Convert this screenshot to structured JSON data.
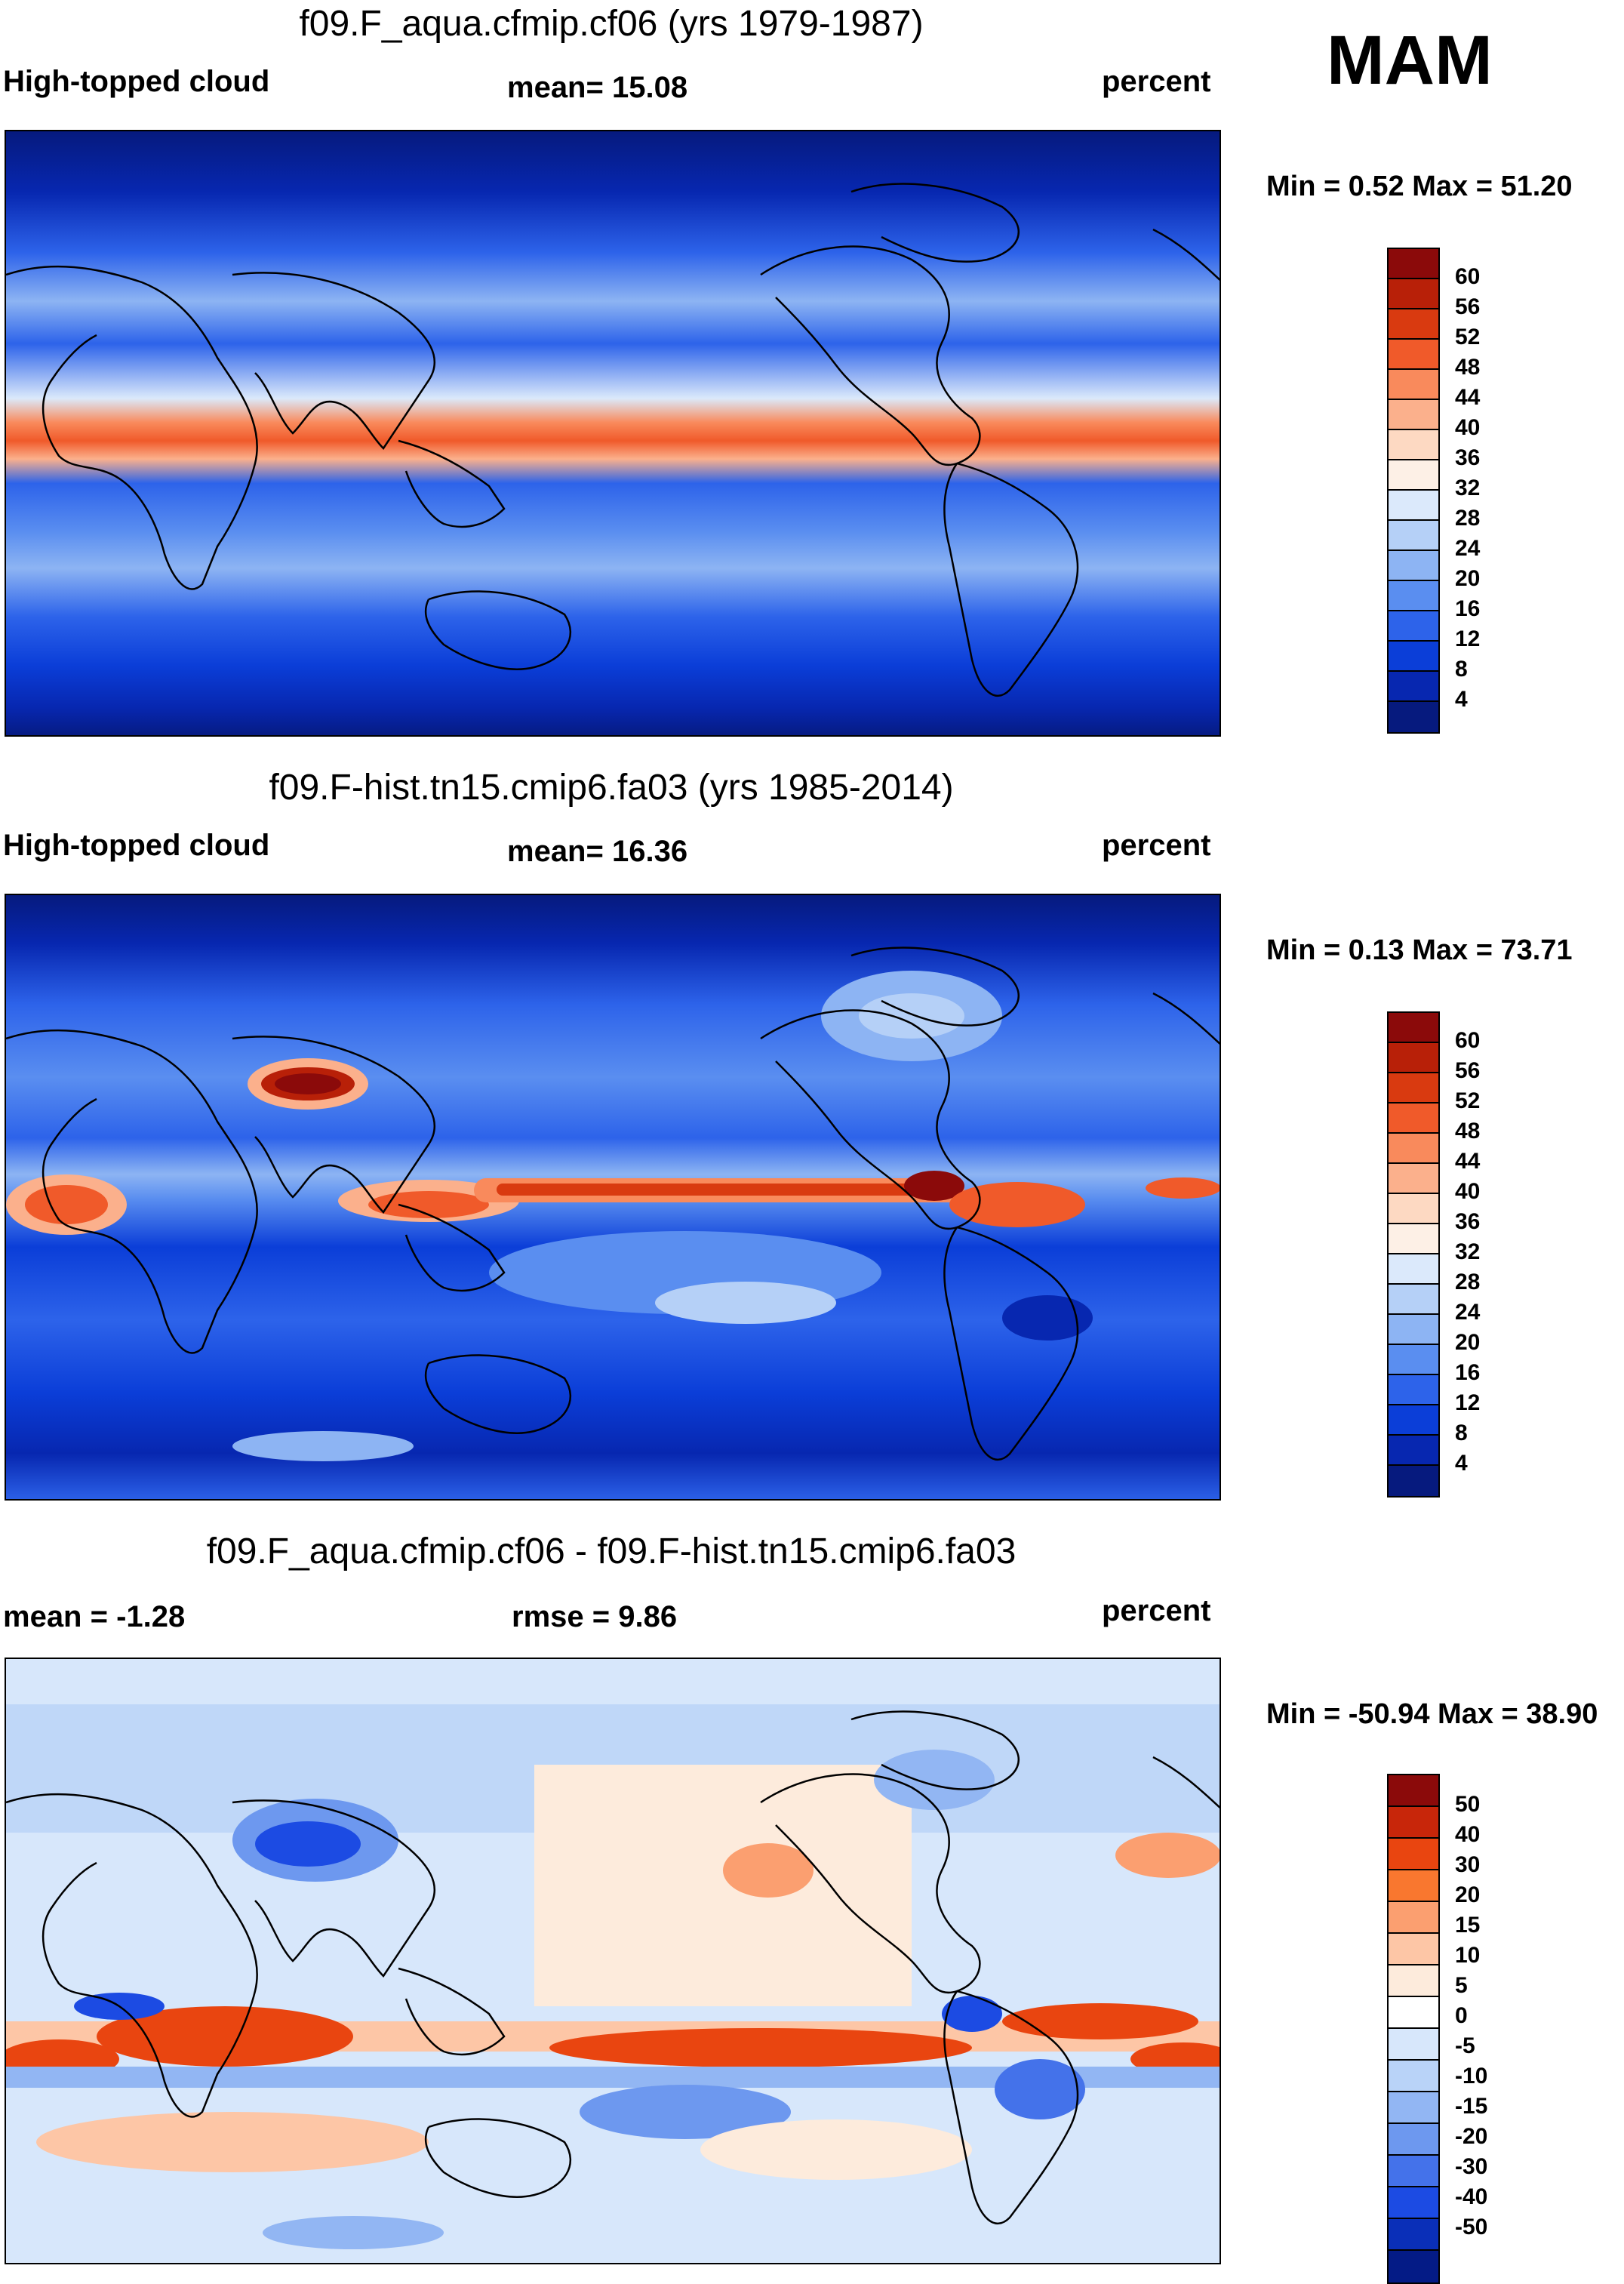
{
  "season": "MAM",
  "panels": [
    {
      "title": "f09.F_aqua.cfmip.cf06 (yrs 1979-1987)",
      "left_label": "High-topped cloud",
      "center_label": "mean=  15.08",
      "units": "percent",
      "minmax": "Min =   0.52 Max =  51.20",
      "colorbar_labels": [
        "60",
        "56",
        "52",
        "48",
        "44",
        "40",
        "36",
        "32",
        "28",
        "24",
        "20",
        "16",
        "12",
        "8",
        "4"
      ]
    },
    {
      "title": "f09.F-hist.tn15.cmip6.fa03 (yrs 1985-2014)",
      "left_label": "High-topped cloud",
      "center_label": "mean=  16.36",
      "units": "percent",
      "minmax": "Min =   0.13 Max =  73.71",
      "colorbar_labels": [
        "60",
        "56",
        "52",
        "48",
        "44",
        "40",
        "36",
        "32",
        "28",
        "24",
        "20",
        "16",
        "12",
        "8",
        "4"
      ]
    },
    {
      "title": "f09.F_aqua.cfmip.cf06 - f09.F-hist.tn15.cmip6.fa03",
      "left_label": "mean =  -1.28",
      "center_label": "rmse =   9.86",
      "units": "percent",
      "minmax": "Min = -50.94 Max =  38.90",
      "colorbar_labels": [
        "50",
        "40",
        "30",
        "20",
        "15",
        "10",
        "5",
        "0",
        "-5",
        "-10",
        "-15",
        "-20",
        "-30",
        "-40",
        "-50"
      ]
    }
  ],
  "colors": {
    "abs_scale": [
      "#8b0a0a",
      "#b82008",
      "#d93a10",
      "#f05a2a",
      "#f98a5c",
      "#fbb08c",
      "#fdd9c2",
      "#fdf0e6",
      "#dbe9fb",
      "#b5d0f7",
      "#8db4f3",
      "#5a8ef0",
      "#2d63ea",
      "#0b3ed8",
      "#0727b0",
      "#061a7e"
    ],
    "diff_scale": [
      "#8b0a0a",
      "#c8260a",
      "#e94510",
      "#f9772f",
      "#fb9f70",
      "#fdc6a6",
      "#fdebdc",
      "#d7e7fb",
      "#b9d3f8",
      "#92b6f3",
      "#6d98ef",
      "#4472ea",
      "#1c4be3",
      "#0a2fb8",
      "#041b86"
    ]
  }
}
